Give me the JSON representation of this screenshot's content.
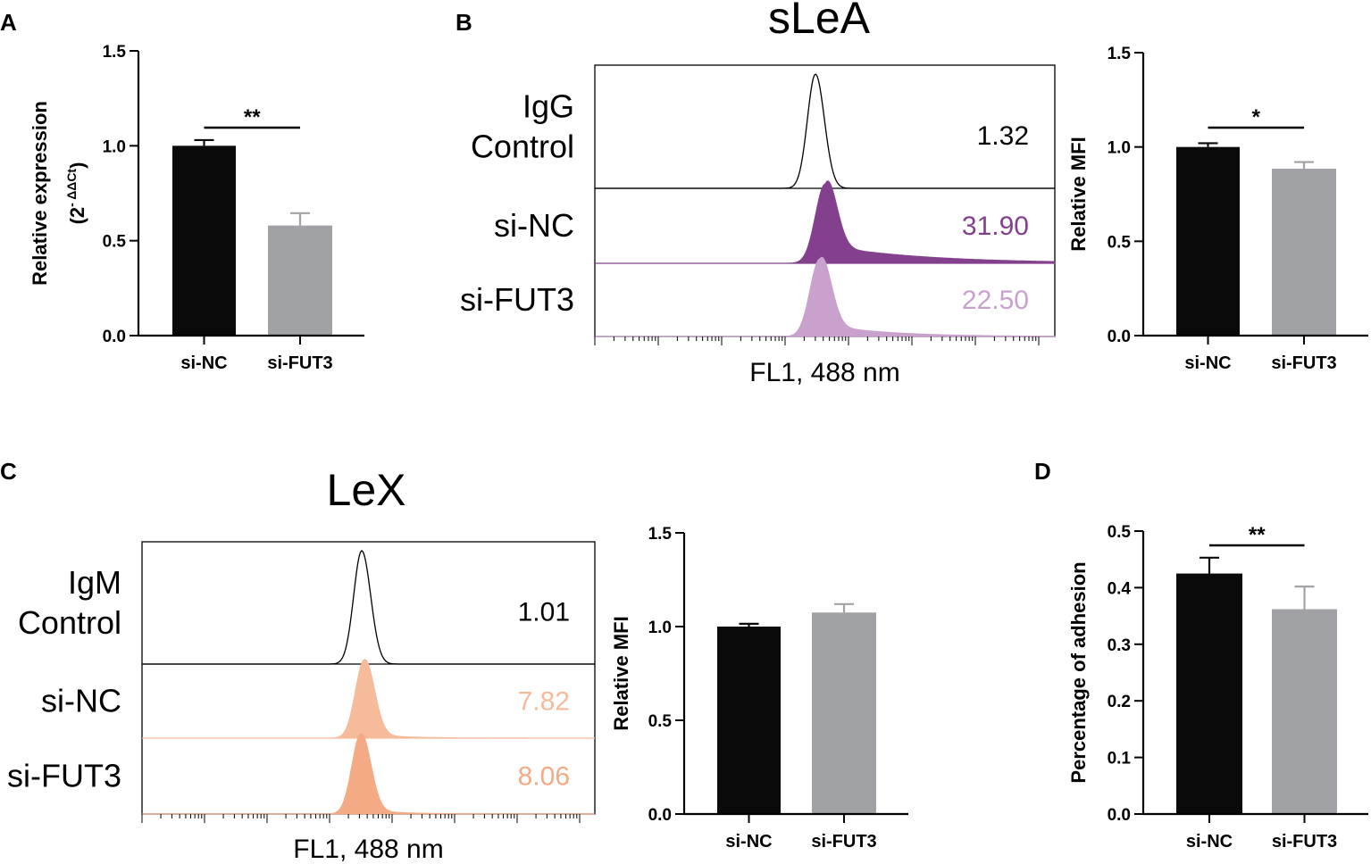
{
  "colors": {
    "si_nc_bar": "#0a0a0a",
    "si_fut3_bar": "#a1a2a6",
    "slea_si_nc": "#83408d",
    "slea_si_fut3": "#c8a2cc",
    "lex_si_nc": "#f6bb9a",
    "lex_si_fut3": "#f4ab85"
  },
  "panels": {
    "A": {
      "letter": "A"
    },
    "B": {
      "letter": "B",
      "title": "sLeA"
    },
    "C": {
      "letter": "C",
      "title": "LeX"
    },
    "D": {
      "letter": "D"
    }
  },
  "chart_data": [
    {
      "id": "A",
      "type": "bar",
      "categories": [
        "si-NC",
        "si-FUT3"
      ],
      "values": [
        1.0,
        0.58
      ],
      "errors": [
        0.03,
        0.065
      ],
      "ylabel": "Relative expression",
      "ylabel_line2": {
        "prefix": "(2",
        "superscript": "- ΔΔCt",
        "suffix": ")"
      },
      "ylim": [
        0,
        1.5
      ],
      "yticks": [
        "0.0",
        "0.5",
        "1.0",
        "1.5"
      ],
      "significance": "**"
    },
    {
      "id": "B-flow",
      "type": "histogram",
      "title": "sLeA",
      "xlabel": "FL1, 488 nm",
      "series": [
        {
          "name_lines": [
            "IgG",
            "Control"
          ],
          "value": "1.32",
          "fill": false,
          "color": "#000000"
        },
        {
          "name_lines": [
            "si-NC"
          ],
          "value": "31.90",
          "fill": true,
          "color": "#83408d"
        },
        {
          "name_lines": [
            "si-FUT3"
          ],
          "value": "22.50",
          "fill": true,
          "color": "#c8a2cc"
        }
      ]
    },
    {
      "id": "B-bar",
      "type": "bar",
      "categories": [
        "si-NC",
        "si-FUT3"
      ],
      "values": [
        1.0,
        0.885
      ],
      "errors": [
        0.02,
        0.035
      ],
      "ylabel": "Relative MFI",
      "ylim": [
        0,
        1.5
      ],
      "yticks": [
        "0.0",
        "0.5",
        "1.0",
        "1.5"
      ],
      "significance": "*"
    },
    {
      "id": "C-flow",
      "type": "histogram",
      "title": "LeX",
      "xlabel": "FL1, 488 nm",
      "series": [
        {
          "name_lines": [
            "IgM",
            "Control"
          ],
          "value": "1.01",
          "fill": false,
          "color": "#000000"
        },
        {
          "name_lines": [
            "si-NC"
          ],
          "value": "7.82",
          "fill": true,
          "color": "#f6bb9a"
        },
        {
          "name_lines": [
            "si-FUT3"
          ],
          "value": "8.06",
          "fill": true,
          "color": "#f4ab85"
        }
      ]
    },
    {
      "id": "C-bar",
      "type": "bar",
      "categories": [
        "si-NC",
        "si-FUT3"
      ],
      "values": [
        1.0,
        1.075
      ],
      "errors": [
        0.015,
        0.045
      ],
      "ylabel": "Relative MFI",
      "ylim": [
        0,
        1.5
      ],
      "yticks": [
        "0.0",
        "0.5",
        "1.0",
        "1.5"
      ],
      "significance": ""
    },
    {
      "id": "D",
      "type": "bar",
      "categories": [
        "si-NC",
        "si-FUT3"
      ],
      "values": [
        0.425,
        0.362
      ],
      "errors": [
        0.028,
        0.04
      ],
      "ylabel": "Percentage of adhesion",
      "ylim": [
        0,
        0.5
      ],
      "yticks": [
        "0.0",
        "0.1",
        "0.2",
        "0.3",
        "0.4",
        "0.5"
      ],
      "significance": "**"
    }
  ]
}
